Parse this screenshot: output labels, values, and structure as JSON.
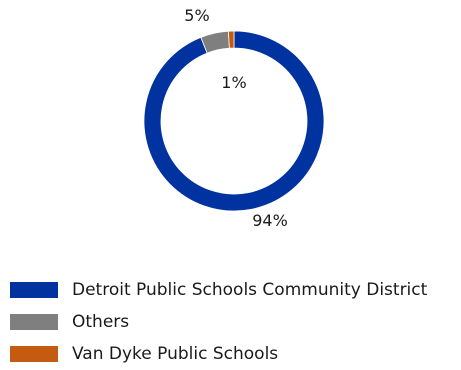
{
  "chart_data": {
    "type": "pie",
    "variant": "donut",
    "title": "",
    "slices": [
      {
        "name": "Detroit Public Schools Community District",
        "value": 94,
        "label": "94%",
        "color": "#0033a0"
      },
      {
        "name": "Others",
        "value": 5,
        "label": "5%",
        "color": "#7f7f7f"
      },
      {
        "name": "Van Dyke Public Schools",
        "value": 1,
        "label": "1%",
        "color": "#c55a11"
      }
    ],
    "start_angle_deg": 0,
    "direction": "clockwise",
    "legend_position": "bottom"
  }
}
